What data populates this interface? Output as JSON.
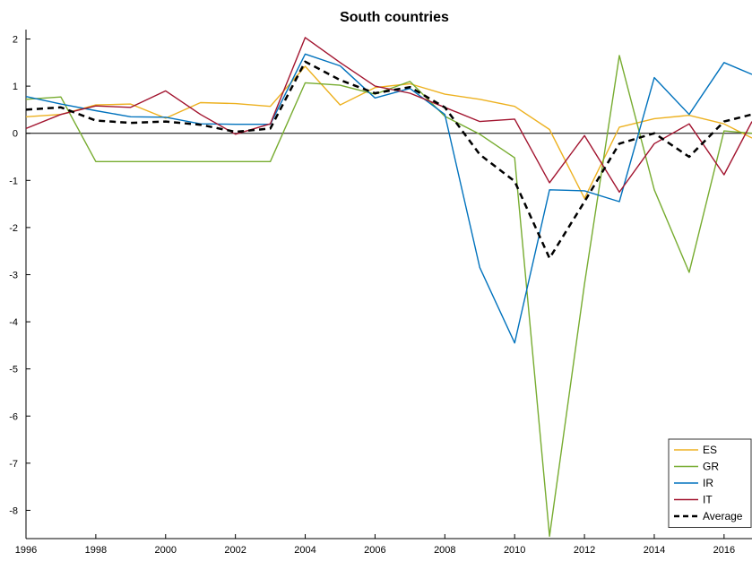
{
  "chart_data": {
    "type": "line",
    "title": "South countries",
    "xlabel": "",
    "ylabel": "",
    "xlim": [
      1996,
      2016.8
    ],
    "ylim": [
      -8.6,
      2.2
    ],
    "x_ticks": [
      1996,
      1998,
      2000,
      2002,
      2004,
      2006,
      2008,
      2010,
      2012,
      2014,
      2016
    ],
    "y_ticks": [
      2,
      1,
      0,
      -1,
      -2,
      -3,
      -4,
      -5,
      -6,
      -7,
      -8
    ],
    "zero_line": true,
    "grid": false,
    "legend_position": "bottom-right",
    "x": [
      1996,
      1997,
      1998,
      1999,
      2000,
      2001,
      2002,
      2003,
      2004,
      2005,
      2006,
      2007,
      2008,
      2009,
      2010,
      2011,
      2012,
      2013,
      2014,
      2015,
      2016,
      2016.8
    ],
    "series": [
      {
        "name": "ES",
        "color": "#EDB120",
        "dashed": false,
        "values": [
          0.35,
          0.4,
          0.6,
          0.62,
          0.32,
          0.65,
          0.63,
          0.57,
          1.42,
          0.6,
          0.97,
          1.05,
          0.83,
          0.72,
          0.57,
          0.08,
          -1.38,
          0.13,
          0.31,
          0.38,
          0.2,
          -0.1
        ]
      },
      {
        "name": "GR",
        "color": "#77AC30",
        "dashed": false,
        "values": [
          0.72,
          0.77,
          -0.6,
          -0.6,
          -0.6,
          -0.6,
          -0.6,
          -0.6,
          1.07,
          1.02,
          0.83,
          1.1,
          0.36,
          -0.02,
          -0.52,
          -8.55,
          -3.2,
          1.65,
          -1.2,
          -2.95,
          0.05,
          0.0
        ]
      },
      {
        "name": "IR",
        "color": "#0072BD",
        "dashed": false,
        "values": [
          0.78,
          0.62,
          0.48,
          0.35,
          0.34,
          0.2,
          0.19,
          0.19,
          1.68,
          1.43,
          0.75,
          0.95,
          0.4,
          -2.85,
          -4.45,
          -1.2,
          -1.22,
          -1.45,
          1.18,
          0.4,
          1.5,
          1.25
        ]
      },
      {
        "name": "IT",
        "color": "#A2142F",
        "dashed": false,
        "values": [
          0.1,
          0.4,
          0.58,
          0.55,
          0.9,
          0.4,
          -0.02,
          0.2,
          2.03,
          1.5,
          1.0,
          0.85,
          0.55,
          0.25,
          0.3,
          -1.05,
          -0.05,
          -1.25,
          -0.22,
          0.2,
          -0.88,
          0.25
        ]
      },
      {
        "name": "Average",
        "color": "#000000",
        "dashed": true,
        "values": [
          0.5,
          0.55,
          0.27,
          0.22,
          0.25,
          0.18,
          0.03,
          0.1,
          1.52,
          1.13,
          0.85,
          0.98,
          0.55,
          -0.45,
          -1.02,
          -2.65,
          -1.45,
          -0.22,
          0.0,
          -0.5,
          0.25,
          0.4
        ]
      }
    ]
  }
}
